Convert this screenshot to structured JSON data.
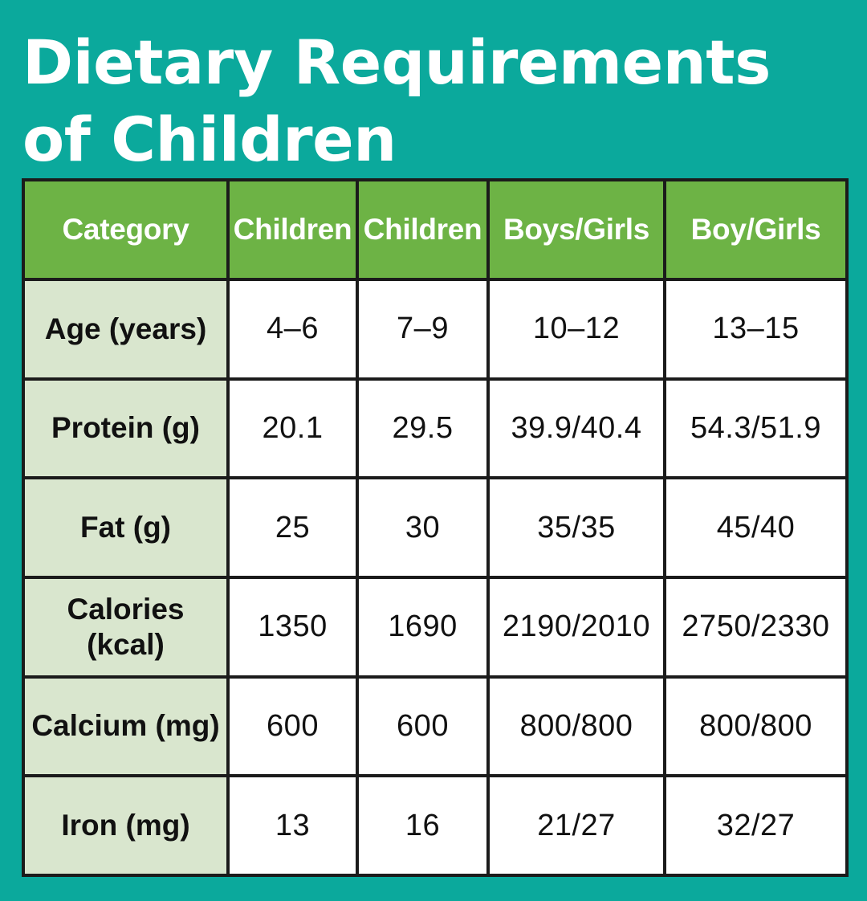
{
  "title": {
    "line1": "Dietary Requirements",
    "line2": "of Children"
  },
  "colors": {
    "background": "#0ba99c",
    "header": "#6db345",
    "row_label": "#d9e6ce",
    "border": "#1b1b1b"
  },
  "table": {
    "headers": [
      "Category",
      "Children",
      "Children",
      "Boys/Girls",
      "Boy/Girls"
    ],
    "rows": [
      {
        "label": "Age (years)",
        "values": [
          "4–6",
          "7–9",
          "10–12",
          "13–15"
        ]
      },
      {
        "label": "Protein (g)",
        "values": [
          "20.1",
          "29.5",
          "39.9/40.4",
          "54.3/51.9"
        ]
      },
      {
        "label": "Fat (g)",
        "values": [
          "25",
          "30",
          "35/35",
          "45/40"
        ]
      },
      {
        "label": "Calories (kcal)",
        "values": [
          "1350",
          "1690",
          "2190/2010",
          "2750/2330"
        ]
      },
      {
        "label": "Calcium (mg)",
        "values": [
          "600",
          "600",
          "800/800",
          "800/800"
        ]
      },
      {
        "label": "Iron (mg)",
        "values": [
          "13",
          "16",
          "21/27",
          "32/27"
        ]
      }
    ]
  }
}
